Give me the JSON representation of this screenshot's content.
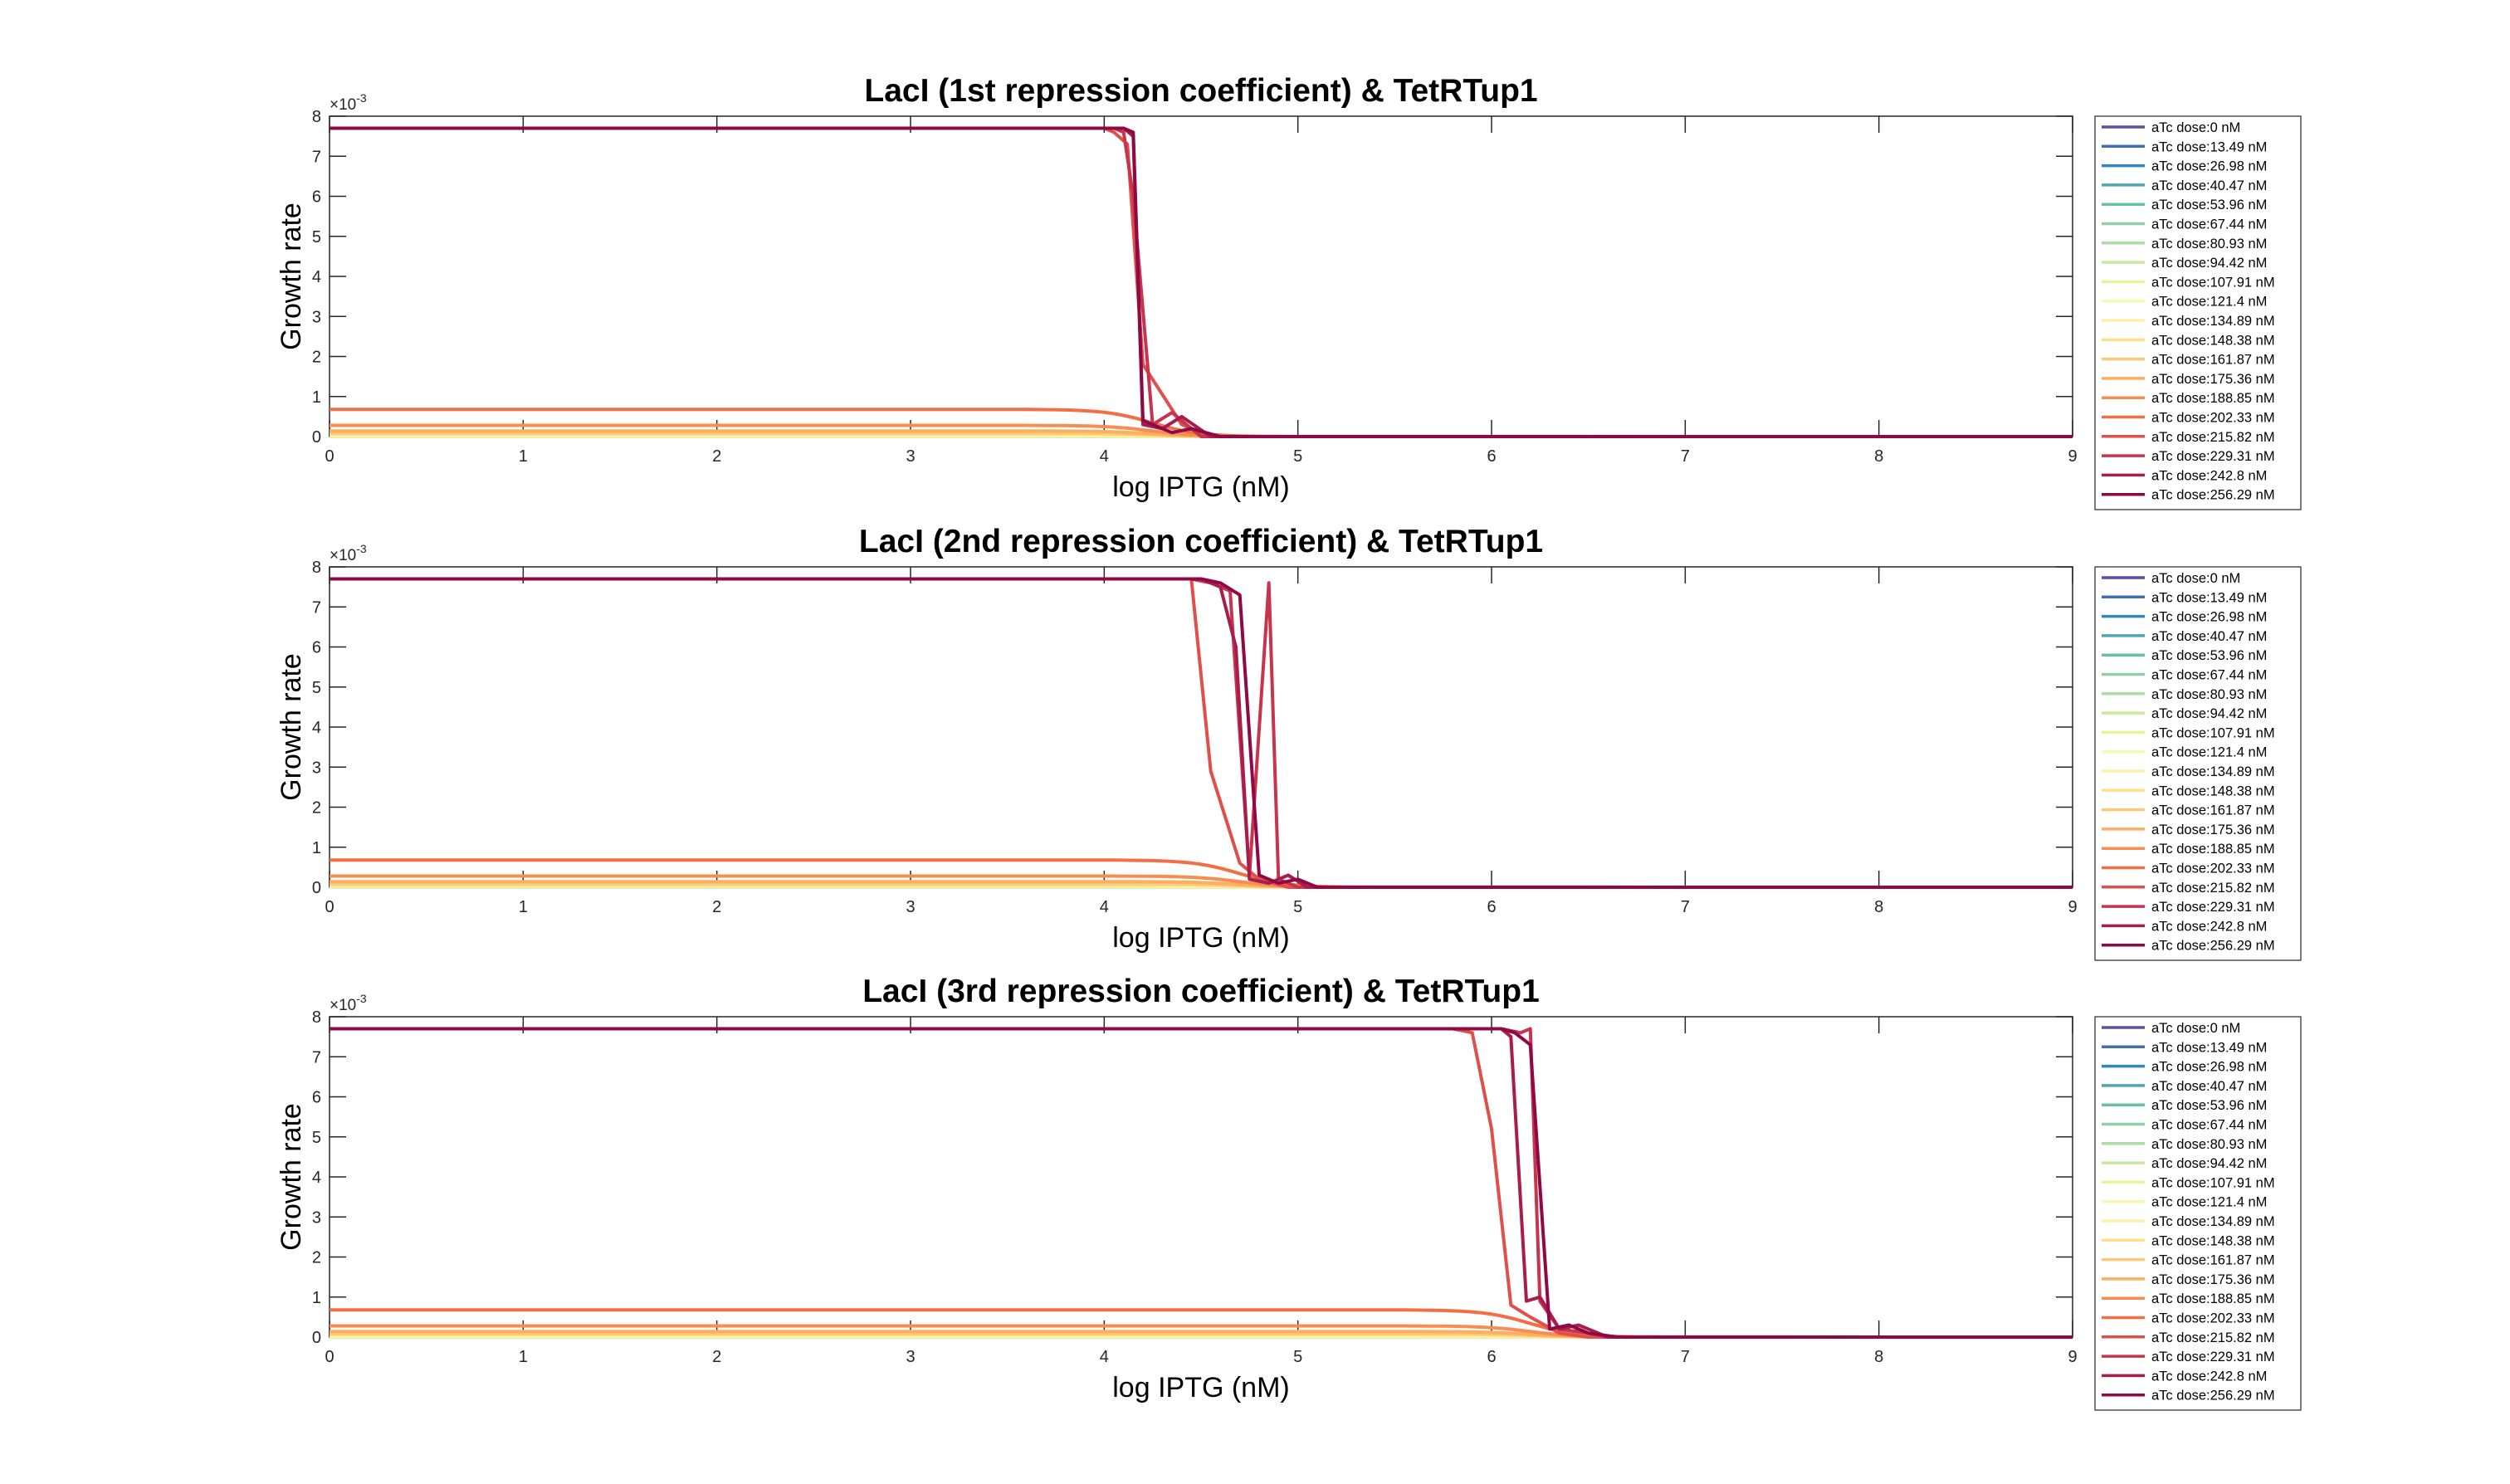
{
  "chart_data": [
    {
      "type": "line",
      "title": "LacI (1st repression coefficient) & TetRTup1",
      "xlabel": "log IPTG (nM)",
      "ylabel": "Growth rate",
      "yexponent": "-3",
      "xlim": [
        0,
        9
      ],
      "ylim": [
        0,
        8
      ],
      "xticks": [
        "0",
        "1",
        "2",
        "3",
        "4",
        "5",
        "6",
        "7",
        "8",
        "9"
      ],
      "yticks": [
        "0",
        "1",
        "2",
        "3",
        "4",
        "5",
        "6",
        "7",
        "8"
      ],
      "grid": false,
      "legend": "right",
      "transition_center": 4.0,
      "series": [
        {
          "name": "aTc dose:0 nM",
          "color": "#5e4fa2",
          "values": [
            0.0
          ]
        },
        {
          "name": "aTc dose:13.49 nM",
          "color": "#3f70b1",
          "values": [
            0.0
          ]
        },
        {
          "name": "aTc dose:26.98 nM",
          "color": "#3288bd",
          "values": [
            0.0
          ]
        },
        {
          "name": "aTc dose:40.47 nM",
          "color": "#4da6b0",
          "values": [
            0.0
          ]
        },
        {
          "name": "aTc dose:53.96 nM",
          "color": "#66c2a5",
          "values": [
            0.0
          ]
        },
        {
          "name": "aTc dose:67.44 nM",
          "color": "#8fd0a4",
          "values": [
            0.0
          ]
        },
        {
          "name": "aTc dose:80.93 nM",
          "color": "#abdda4",
          "values": [
            0.0
          ]
        },
        {
          "name": "aTc dose:94.42 nM",
          "color": "#cbe99d",
          "values": [
            0.0
          ]
        },
        {
          "name": "aTc dose:107.91 nM",
          "color": "#e6f598",
          "values": [
            0.01
          ]
        },
        {
          "name": "aTc dose:121.4 nM",
          "color": "#f4f9b4",
          "values": [
            0.02
          ]
        },
        {
          "name": "aTc dose:134.89 nM",
          "color": "#fff0a8",
          "values": [
            0.04
          ]
        },
        {
          "name": "aTc dose:148.38 nM",
          "color": "#fee08b",
          "values": [
            0.06
          ]
        },
        {
          "name": "aTc dose:161.87 nM",
          "color": "#fdc877",
          "values": [
            0.09
          ]
        },
        {
          "name": "aTc dose:175.36 nM",
          "color": "#fdae61",
          "values": [
            0.14
          ]
        },
        {
          "name": "aTc dose:188.85 nM",
          "color": "#f88d52",
          "values": [
            0.28
          ]
        },
        {
          "name": "aTc dose:202.33 nM",
          "color": "#f46d43",
          "values": [
            0.68
          ]
        },
        {
          "name": "aTc dose:215.82 nM",
          "color": "#e04f4a",
          "values": [
            7.7
          ]
        },
        {
          "name": "aTc dose:229.31 nM",
          "color": "#c7344d",
          "values": [
            7.7
          ]
        },
        {
          "name": "aTc dose:242.8 nM",
          "color": "#aa1c4c",
          "values": [
            7.7
          ]
        },
        {
          "name": "aTc dose:256.29 nM",
          "color": "#8f0a45",
          "values": [
            7.7
          ]
        }
      ],
      "drops": [
        {
          "series": 16,
          "x": [
            4.0,
            4.05,
            4.12,
            4.2,
            4.28,
            4.4,
            4.55
          ],
          "y": [
            7.7,
            7.6,
            7.3,
            1.8,
            1.2,
            0.3,
            0.0
          ]
        },
        {
          "series": 17,
          "x": [
            4.0,
            4.05,
            4.1,
            4.15,
            4.25,
            4.35,
            4.5
          ],
          "y": [
            7.7,
            7.7,
            7.6,
            6.0,
            0.3,
            0.6,
            0.0
          ]
        },
        {
          "series": 18,
          "x": [
            4.0,
            4.1,
            4.15,
            4.2,
            4.3,
            4.4,
            4.55
          ],
          "y": [
            7.7,
            7.7,
            7.5,
            0.3,
            0.2,
            0.5,
            0.0
          ]
        },
        {
          "series": 19,
          "x": [
            4.0,
            4.1,
            4.15,
            4.2,
            4.35,
            4.45,
            4.6
          ],
          "y": [
            7.7,
            7.7,
            7.6,
            0.4,
            0.1,
            0.2,
            0.0
          ]
        }
      ]
    },
    {
      "type": "line",
      "title": "LacI (2nd repression coefficient) & TetRTup1",
      "xlabel": "log IPTG (nM)",
      "ylabel": "Growth rate",
      "yexponent": "-3",
      "xlim": [
        0,
        9
      ],
      "ylim": [
        0,
        8
      ],
      "xticks": [
        "0",
        "1",
        "2",
        "3",
        "4",
        "5",
        "6",
        "7",
        "8",
        "9"
      ],
      "yticks": [
        "0",
        "1",
        "2",
        "3",
        "4",
        "5",
        "6",
        "7",
        "8"
      ],
      "grid": false,
      "legend": "right",
      "transition_center": 4.45,
      "series": [
        {
          "name": "aTc dose:0 nM",
          "color": "#5e4fa2",
          "values": [
            0.0
          ]
        },
        {
          "name": "aTc dose:13.49 nM",
          "color": "#3f70b1",
          "values": [
            0.0
          ]
        },
        {
          "name": "aTc dose:26.98 nM",
          "color": "#3288bd",
          "values": [
            0.0
          ]
        },
        {
          "name": "aTc dose:40.47 nM",
          "color": "#4da6b0",
          "values": [
            0.0
          ]
        },
        {
          "name": "aTc dose:53.96 nM",
          "color": "#66c2a5",
          "values": [
            0.0
          ]
        },
        {
          "name": "aTc dose:67.44 nM",
          "color": "#8fd0a4",
          "values": [
            0.0
          ]
        },
        {
          "name": "aTc dose:80.93 nM",
          "color": "#abdda4",
          "values": [
            0.0
          ]
        },
        {
          "name": "aTc dose:94.42 nM",
          "color": "#cbe99d",
          "values": [
            0.0
          ]
        },
        {
          "name": "aTc dose:107.91 nM",
          "color": "#e6f598",
          "values": [
            0.01
          ]
        },
        {
          "name": "aTc dose:121.4 nM",
          "color": "#f4f9b4",
          "values": [
            0.02
          ]
        },
        {
          "name": "aTc dose:134.89 nM",
          "color": "#fff0a8",
          "values": [
            0.04
          ]
        },
        {
          "name": "aTc dose:148.38 nM",
          "color": "#fee08b",
          "values": [
            0.06
          ]
        },
        {
          "name": "aTc dose:161.87 nM",
          "color": "#fdc877",
          "values": [
            0.09
          ]
        },
        {
          "name": "aTc dose:175.36 nM",
          "color": "#fdae61",
          "values": [
            0.14
          ]
        },
        {
          "name": "aTc dose:188.85 nM",
          "color": "#f88d52",
          "values": [
            0.28
          ]
        },
        {
          "name": "aTc dose:202.33 nM",
          "color": "#f46d43",
          "values": [
            0.68
          ]
        },
        {
          "name": "aTc dose:215.82 nM",
          "color": "#e04f4a",
          "values": [
            7.7
          ]
        },
        {
          "name": "aTc dose:229.31 nM",
          "color": "#c7344d",
          "values": [
            7.7
          ]
        },
        {
          "name": "aTc dose:242.8 nM",
          "color": "#aa1c4c",
          "values": [
            7.7
          ]
        },
        {
          "name": "aTc dose:256.29 nM",
          "color": "#8f0a45",
          "values": [
            7.7
          ]
        }
      ],
      "drops": [
        {
          "series": 16,
          "x": [
            4.3,
            4.45,
            4.55,
            4.7,
            4.8,
            4.95
          ],
          "y": [
            7.7,
            7.7,
            2.9,
            0.6,
            0.2,
            0.0
          ]
        },
        {
          "series": 17,
          "x": [
            4.3,
            4.45,
            4.55,
            4.65,
            4.75,
            4.85,
            4.9,
            5.0
          ],
          "y": [
            7.7,
            7.7,
            7.6,
            7.4,
            0.3,
            7.6,
            0.2,
            0.0
          ]
        },
        {
          "series": 18,
          "x": [
            4.3,
            4.5,
            4.6,
            4.68,
            4.75,
            4.85,
            4.95,
            5.05
          ],
          "y": [
            7.7,
            7.7,
            7.5,
            6.0,
            0.2,
            0.1,
            0.3,
            0.0
          ]
        },
        {
          "series": 19,
          "x": [
            4.3,
            4.5,
            4.6,
            4.7,
            4.8,
            4.9,
            5.0,
            5.1
          ],
          "y": [
            7.7,
            7.7,
            7.6,
            7.3,
            0.3,
            0.1,
            0.2,
            0.0
          ]
        }
      ]
    },
    {
      "type": "line",
      "title": "LacI (3rd repression coefficient) & TetRTup1",
      "xlabel": "log IPTG (nM)",
      "ylabel": "Growth rate",
      "yexponent": "-3",
      "xlim": [
        0,
        9
      ],
      "ylim": [
        0,
        8
      ],
      "xticks": [
        "0",
        "1",
        "2",
        "3",
        "4",
        "5",
        "6",
        "7",
        "8",
        "9"
      ],
      "yticks": [
        "0",
        "1",
        "2",
        "3",
        "4",
        "5",
        "6",
        "7",
        "8"
      ],
      "grid": false,
      "legend": "right",
      "transition_center": 5.95,
      "series": [
        {
          "name": "aTc dose:0 nM",
          "color": "#5e4fa2",
          "values": [
            0.0
          ]
        },
        {
          "name": "aTc dose:13.49 nM",
          "color": "#3f70b1",
          "values": [
            0.0
          ]
        },
        {
          "name": "aTc dose:26.98 nM",
          "color": "#3288bd",
          "values": [
            0.0
          ]
        },
        {
          "name": "aTc dose:40.47 nM",
          "color": "#4da6b0",
          "values": [
            0.0
          ]
        },
        {
          "name": "aTc dose:53.96 nM",
          "color": "#66c2a5",
          "values": [
            0.0
          ]
        },
        {
          "name": "aTc dose:67.44 nM",
          "color": "#8fd0a4",
          "values": [
            0.0
          ]
        },
        {
          "name": "aTc dose:80.93 nM",
          "color": "#abdda4",
          "values": [
            0.0
          ]
        },
        {
          "name": "aTc dose:94.42 nM",
          "color": "#cbe99d",
          "values": [
            0.0
          ]
        },
        {
          "name": "aTc dose:107.91 nM",
          "color": "#e6f598",
          "values": [
            0.01
          ]
        },
        {
          "name": "aTc dose:121.4 nM",
          "color": "#f4f9b4",
          "values": [
            0.02
          ]
        },
        {
          "name": "aTc dose:134.89 nM",
          "color": "#fff0a8",
          "values": [
            0.04
          ]
        },
        {
          "name": "aTc dose:148.38 nM",
          "color": "#fee08b",
          "values": [
            0.06
          ]
        },
        {
          "name": "aTc dose:161.87 nM",
          "color": "#fdc877",
          "values": [
            0.09
          ]
        },
        {
          "name": "aTc dose:175.36 nM",
          "color": "#fdae61",
          "values": [
            0.14
          ]
        },
        {
          "name": "aTc dose:188.85 nM",
          "color": "#f88d52",
          "values": [
            0.28
          ]
        },
        {
          "name": "aTc dose:202.33 nM",
          "color": "#f46d43",
          "values": [
            0.68
          ]
        },
        {
          "name": "aTc dose:215.82 nM",
          "color": "#e04f4a",
          "values": [
            7.7
          ]
        },
        {
          "name": "aTc dose:229.31 nM",
          "color": "#c7344d",
          "values": [
            7.7
          ]
        },
        {
          "name": "aTc dose:242.8 nM",
          "color": "#aa1c4c",
          "values": [
            7.7
          ]
        },
        {
          "name": "aTc dose:256.29 nM",
          "color": "#8f0a45",
          "values": [
            7.7
          ]
        }
      ],
      "drops": [
        {
          "series": 16,
          "x": [
            5.8,
            5.9,
            6.0,
            6.1,
            6.2,
            6.35,
            6.5
          ],
          "y": [
            7.7,
            7.6,
            5.2,
            0.8,
            0.5,
            0.1,
            0.0
          ]
        },
        {
          "series": 17,
          "x": [
            5.9,
            6.05,
            6.15,
            6.2,
            6.25,
            6.35,
            6.5,
            6.6
          ],
          "y": [
            7.7,
            7.7,
            7.6,
            7.7,
            0.9,
            0.2,
            0.1,
            0.0
          ]
        },
        {
          "series": 18,
          "x": [
            5.9,
            6.05,
            6.1,
            6.18,
            6.25,
            6.35,
            6.45,
            6.6
          ],
          "y": [
            7.7,
            7.7,
            7.5,
            0.9,
            1.0,
            0.2,
            0.3,
            0.0
          ]
        },
        {
          "series": 19,
          "x": [
            5.9,
            6.05,
            6.12,
            6.2,
            6.3,
            6.4,
            6.5,
            6.65
          ],
          "y": [
            7.7,
            7.7,
            7.6,
            7.3,
            0.2,
            0.3,
            0.1,
            0.0
          ]
        }
      ]
    }
  ]
}
